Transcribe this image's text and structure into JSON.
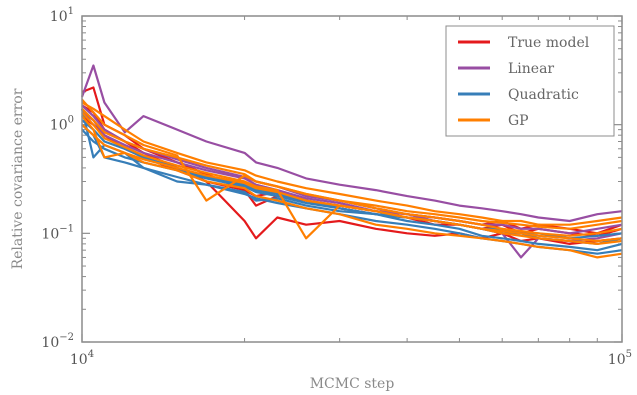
{
  "chart_data": {
    "type": "line",
    "title": "",
    "xlabel": "MCMC step",
    "ylabel": "Relative covariance error",
    "x_scale": "log",
    "y_scale": "log",
    "xlim": [
      10000,
      100000
    ],
    "ylim": [
      0.01,
      10
    ],
    "x_ticks": [
      {
        "value": 10000,
        "base": "10",
        "exp": "4"
      },
      {
        "value": 100000,
        "base": "10",
        "exp": "5"
      }
    ],
    "y_ticks": [
      {
        "value": 0.01,
        "base": "10",
        "exp": "−2"
      },
      {
        "value": 0.1,
        "base": "10",
        "exp": "−1"
      },
      {
        "value": 1,
        "base": "10",
        "exp": "0"
      },
      {
        "value": 10,
        "base": "10",
        "exp": "1"
      }
    ],
    "grid": false,
    "legend_position": "top-right",
    "x": [
      10000,
      10500,
      11000,
      12000,
      13000,
      15000,
      17000,
      20000,
      21000,
      23000,
      26000,
      30000,
      35000,
      40000,
      45000,
      50000,
      55000,
      60000,
      65000,
      70000,
      80000,
      90000,
      100000
    ],
    "series": [
      {
        "name": "True model",
        "color": "#e41a1c",
        "runs": [
          [
            2.0,
            2.2,
            1.0,
            0.8,
            0.6,
            0.45,
            0.35,
            0.25,
            0.18,
            0.22,
            0.2,
            0.17,
            0.15,
            0.14,
            0.12,
            0.12,
            0.11,
            0.12,
            0.1,
            0.11,
            0.1,
            0.095,
            0.11
          ],
          [
            1.5,
            1.3,
            0.9,
            0.7,
            0.55,
            0.4,
            0.3,
            0.13,
            0.09,
            0.14,
            0.12,
            0.13,
            0.11,
            0.1,
            0.095,
            0.1,
            0.09,
            0.1,
            0.085,
            0.09,
            0.08,
            0.085,
            0.09
          ],
          [
            1.2,
            1.0,
            0.8,
            0.6,
            0.5,
            0.38,
            0.3,
            0.25,
            0.22,
            0.24,
            0.2,
            0.18,
            0.16,
            0.15,
            0.14,
            0.13,
            0.12,
            0.13,
            0.11,
            0.12,
            0.11,
            0.1,
            0.12
          ]
        ]
      },
      {
        "name": "Linear",
        "color": "#984ea3",
        "runs": [
          [
            1.8,
            3.5,
            1.6,
            0.85,
            1.2,
            0.9,
            0.7,
            0.55,
            0.45,
            0.4,
            0.32,
            0.28,
            0.25,
            0.22,
            0.2,
            0.18,
            0.17,
            0.16,
            0.15,
            0.14,
            0.13,
            0.15,
            0.16
          ],
          [
            1.5,
            1.2,
            0.9,
            0.7,
            0.6,
            0.48,
            0.4,
            0.33,
            0.3,
            0.27,
            0.22,
            0.2,
            0.17,
            0.15,
            0.13,
            0.12,
            0.11,
            0.1,
            0.06,
            0.09,
            0.085,
            0.09,
            0.1
          ],
          [
            1.3,
            1.1,
            0.8,
            0.65,
            0.55,
            0.45,
            0.38,
            0.32,
            0.28,
            0.25,
            0.21,
            0.19,
            0.16,
            0.15,
            0.14,
            0.13,
            0.12,
            0.12,
            0.11,
            0.11,
            0.1,
            0.11,
            0.12
          ]
        ]
      },
      {
        "name": "Quadratic",
        "color": "#377eb8",
        "runs": [
          [
            1.4,
            0.5,
            0.65,
            0.55,
            0.4,
            0.3,
            0.28,
            0.24,
            0.2,
            0.21,
            0.18,
            0.16,
            0.15,
            0.14,
            0.13,
            0.12,
            0.11,
            0.11,
            0.1,
            0.1,
            0.09,
            0.095,
            0.1
          ],
          [
            1.1,
            0.9,
            0.7,
            0.6,
            0.5,
            0.4,
            0.33,
            0.28,
            0.25,
            0.23,
            0.2,
            0.17,
            0.15,
            0.13,
            0.12,
            0.11,
            0.095,
            0.09,
            0.085,
            0.08,
            0.075,
            0.07,
            0.08
          ],
          [
            0.9,
            0.7,
            0.6,
            0.5,
            0.45,
            0.38,
            0.32,
            0.27,
            0.24,
            0.22,
            0.19,
            0.17,
            0.15,
            0.14,
            0.13,
            0.12,
            0.11,
            0.1,
            0.1,
            0.09,
            0.085,
            0.08,
            0.09
          ],
          [
            1.0,
            0.8,
            0.5,
            0.45,
            0.4,
            0.33,
            0.28,
            0.23,
            0.21,
            0.19,
            0.17,
            0.15,
            0.13,
            0.12,
            0.11,
            0.1,
            0.09,
            0.085,
            0.08,
            0.075,
            0.07,
            0.065,
            0.07
          ]
        ]
      },
      {
        "name": "GP",
        "color": "#ff7f00",
        "runs": [
          [
            1.6,
            1.4,
            1.2,
            0.9,
            0.7,
            0.55,
            0.45,
            0.38,
            0.34,
            0.3,
            0.26,
            0.23,
            0.2,
            0.18,
            0.16,
            0.15,
            0.14,
            0.13,
            0.13,
            0.12,
            0.12,
            0.13,
            0.14
          ],
          [
            1.2,
            0.9,
            0.5,
            0.55,
            0.45,
            0.38,
            0.3,
            0.26,
            0.22,
            0.2,
            0.17,
            0.15,
            0.12,
            0.11,
            0.1,
            0.095,
            0.09,
            0.085,
            0.08,
            0.075,
            0.07,
            0.06,
            0.065
          ],
          [
            1.4,
            1.1,
            0.85,
            0.7,
            0.6,
            0.5,
            0.42,
            0.35,
            0.3,
            0.27,
            0.23,
            0.2,
            0.18,
            0.16,
            0.15,
            0.14,
            0.13,
            0.125,
            0.12,
            0.115,
            0.11,
            0.12,
            0.13
          ],
          [
            1.0,
            0.8,
            0.65,
            0.55,
            0.48,
            0.4,
            0.34,
            0.29,
            0.26,
            0.24,
            0.2,
            0.18,
            0.16,
            0.14,
            0.13,
            0.12,
            0.11,
            0.105,
            0.1,
            0.095,
            0.09,
            0.085,
            0.09
          ],
          [
            1.7,
            1.3,
            1.0,
            0.8,
            0.65,
            0.52,
            0.2,
            0.34,
            0.3,
            0.27,
            0.23,
            0.2,
            0.17,
            0.15,
            0.14,
            0.13,
            0.12,
            0.11,
            0.105,
            0.1,
            0.095,
            0.1,
            0.11
          ],
          [
            1.3,
            1.0,
            0.75,
            0.62,
            0.52,
            0.42,
            0.36,
            0.3,
            0.27,
            0.25,
            0.09,
            0.18,
            0.16,
            0.14,
            0.13,
            0.12,
            0.11,
            0.1,
            0.095,
            0.09,
            0.085,
            0.08,
            0.085
          ]
        ]
      }
    ]
  }
}
